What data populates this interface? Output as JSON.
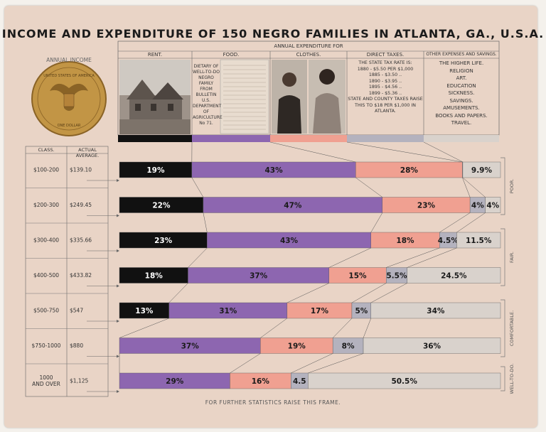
{
  "title": "INCOME AND EXPENDITURE OF 150 NEGRO FAMILIES IN ATLANTA, GA., U.S.A.",
  "annual_income_label": "ANNUAL INCOME",
  "seal": {
    "top": "UNITED STATES OF AMERICA",
    "bottom": "ONE DOLLAR"
  },
  "annual_expenditure_label": "ANNUAL EXPENDITURE FOR",
  "columns": {
    "rent": "RENT.",
    "food": "FOOD.",
    "clothes": "CLOTHES.",
    "taxes": "DIRECT TAXES.",
    "other": "OTHER EXPENSES AND SAVINGS."
  },
  "food_note": "DIETARY OF WELL-TO-DO NEGRO FAMILY FROM BULLETIN U.S. DEPARTMENT OF AGRICULTURE No 71.",
  "taxes_text": {
    "heading": "THE STATE TAX RATE IS:",
    "rates": [
      "1880 - $5.50 PER $1,000",
      "1885 - $3.50 ..",
      "1890 - $3.95 ..",
      "1895 - $4.56 ..",
      "1899 - $5.36 .."
    ],
    "note": "STATE AND COUNTY TAXES RAISE THIS TO $18 PER $1,000 IN ATLANTA."
  },
  "other_items": [
    "THE HIGHER LIFE.",
    "RELIGION",
    "ART.",
    "EDUCATION",
    "SICKNESS.",
    "SAVINGS.",
    "AMUSEMENTS.",
    "BOOKS AND PAPERS.",
    "TRAVEL."
  ],
  "col_headers": {
    "class": "CLASS.",
    "average": "ACTUAL AVERAGE."
  },
  "groups": [
    "POOR.",
    "FAIR.",
    "COMFORTABLE.",
    "WELL-TO-DO."
  ],
  "footer": "FOR FURTHER STATISTICS RAISE THIS FRAME.",
  "colors": {
    "rent": "#111111",
    "food": "#8d66b0",
    "clothes": "#f0a091",
    "taxes": "#b4b2be",
    "other": "#d9d2cc"
  },
  "chart_data": {
    "type": "bar",
    "orientation": "horizontal",
    "stacked": true,
    "unit": "%",
    "categories": [
      "$100-200",
      "$200-300",
      "$300-400",
      "$400-500",
      "$500-750",
      "$750-1000",
      "1000 AND OVER"
    ],
    "averages": [
      "$139.10",
      "$249.45",
      "$335.66",
      "$433.82",
      "$547",
      "$880",
      "$1,125"
    ],
    "series": [
      {
        "name": "RENT.",
        "values": [
          19,
          22,
          23,
          18,
          13,
          0,
          0
        ],
        "labels": [
          "19%",
          "22%",
          "23%",
          "18%",
          "13%",
          "",
          ""
        ]
      },
      {
        "name": "FOOD.",
        "values": [
          43,
          47,
          43,
          37,
          31,
          37,
          29
        ],
        "labels": [
          "43%",
          "47%",
          "43%",
          "37%",
          "31%",
          "37%",
          "29%"
        ]
      },
      {
        "name": "CLOTHES.",
        "values": [
          28,
          23,
          18,
          15,
          17,
          19,
          16
        ],
        "labels": [
          "28%",
          "23%",
          "18%",
          "15%",
          "17%",
          "19%",
          "16%"
        ]
      },
      {
        "name": "DIRECT TAXES.",
        "values": [
          0.1,
          4,
          4.5,
          5.5,
          5,
          8,
          4.5
        ],
        "labels": [
          "",
          "4%",
          "4.5%",
          "5.5%",
          "5%",
          "8%",
          "4.5"
        ]
      },
      {
        "name": "OTHER EXPENSES AND SAVINGS.",
        "values": [
          9.9,
          4,
          11.5,
          24.5,
          34,
          36,
          50.5
        ],
        "labels": [
          "9.9%",
          "4%",
          "11.5%",
          "24.5%",
          "34%",
          "36%",
          "50.5%"
        ]
      }
    ]
  }
}
